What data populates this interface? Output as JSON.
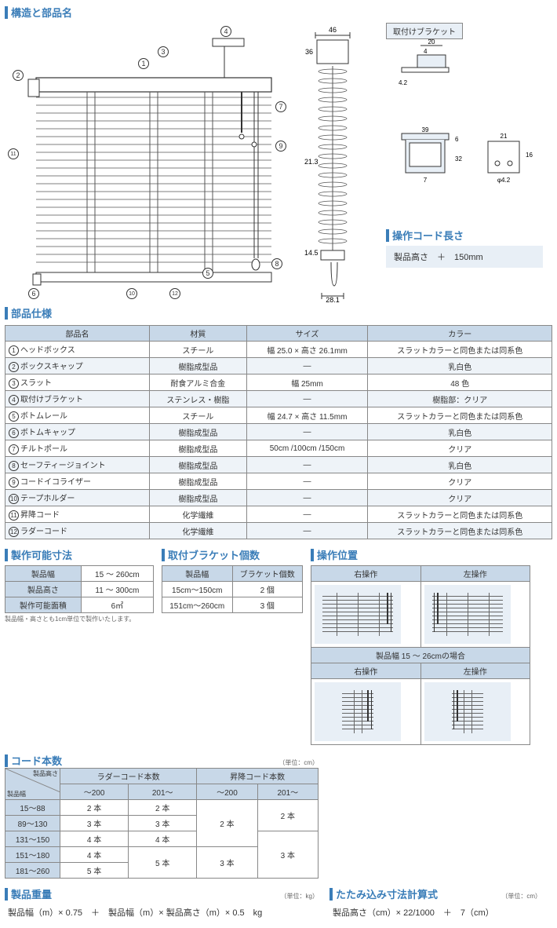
{
  "titles": {
    "structure": "構造と部品名",
    "parts_spec": "部品仕様",
    "cord_length": "操作コード長さ",
    "make_size": "製作可能寸法",
    "bracket_count": "取付ブラケット個数",
    "op_position": "操作位置",
    "cord_count": "コード本数",
    "weight": "製品重量",
    "fold": "たたみ込み寸法計算式",
    "bracket_label": "取付けブラケット"
  },
  "cord_length_formula": "製品高さ　＋　150mm",
  "parts_table": {
    "headers": [
      "部品名",
      "材質",
      "サイズ",
      "カラー"
    ],
    "rows": [
      {
        "n": "1",
        "name": "ヘッドボックス",
        "mat": "スチール",
        "size": "幅 25.0 × 高さ 26.1mm",
        "color": "スラットカラーと同色または同系色"
      },
      {
        "n": "2",
        "name": "ボックスキャップ",
        "mat": "樹脂成型品",
        "size": "—",
        "color": "乳白色"
      },
      {
        "n": "3",
        "name": "スラット",
        "mat": "耐食アルミ合金",
        "size": "幅 25mm",
        "color": "48 色"
      },
      {
        "n": "4",
        "name": "取付けブラケット",
        "mat": "ステンレス・樹脂",
        "size": "—",
        "color": "樹脂部：クリア"
      },
      {
        "n": "5",
        "name": "ボトムレール",
        "mat": "スチール",
        "size": "幅 24.7 × 高さ 11.5mm",
        "color": "スラットカラーと同色または同系色"
      },
      {
        "n": "6",
        "name": "ボトムキャップ",
        "mat": "樹脂成型品",
        "size": "—",
        "color": "乳白色"
      },
      {
        "n": "7",
        "name": "チルトポール",
        "mat": "樹脂成型品",
        "size": "50cm /100cm /150cm",
        "color": "クリア"
      },
      {
        "n": "8",
        "name": "セーフティージョイント",
        "mat": "樹脂成型品",
        "size": "—",
        "color": "乳白色"
      },
      {
        "n": "9",
        "name": "コードイコライザー",
        "mat": "樹脂成型品",
        "size": "—",
        "color": "クリア"
      },
      {
        "n": "10",
        "name": "テープホルダー",
        "mat": "樹脂成型品",
        "size": "—",
        "color": "クリア"
      },
      {
        "n": "11",
        "name": "昇降コード",
        "mat": "化学繊維",
        "size": "—",
        "color": "スラットカラーと同色または同系色"
      },
      {
        "n": "12",
        "name": "ラダーコード",
        "mat": "化学繊維",
        "size": "—",
        "color": "スラットカラーと同色または同系色"
      }
    ]
  },
  "make_size": {
    "rows": [
      {
        "k": "製品幅",
        "v": "15 ～ 260cm"
      },
      {
        "k": "製品高さ",
        "v": "11 ～ 300cm"
      },
      {
        "k": "製作可能面積",
        "v": "6㎡"
      }
    ],
    "note": "製品幅・高さとも1cm単位で製作いたします。"
  },
  "bracket_count": {
    "headers": [
      "製品幅",
      "ブラケット個数"
    ],
    "rows": [
      {
        "w": "15cm～150cm",
        "c": "2 個"
      },
      {
        "w": "151cm～260cm",
        "c": "3 個"
      }
    ]
  },
  "op_position": {
    "headers": [
      "右操作",
      "左操作"
    ],
    "sub_label": "製品幅 15 ～ 26cmの場合"
  },
  "cord_count": {
    "unit": "（単位：cm）",
    "col_h1": "製品高さ",
    "col_h2": "製品幅",
    "groups": [
      "ラダーコード本数",
      "昇降コード本数"
    ],
    "subs": [
      "～200",
      "201～",
      "～200",
      "201～"
    ],
    "rows": [
      {
        "w": "15～88",
        "l1": "2 本",
        "l2": "2 本",
        "s1": "2 本",
        "s2": "2 本",
        "span_s1": 2,
        "span_s2": 2
      },
      {
        "w": "89～130",
        "l1": "3 本",
        "l2": "3 本"
      },
      {
        "w": "131～150",
        "l1": "4 本",
        "l2": "4 本",
        "s1": "3 本",
        "s2": "3 本",
        "span_s1": 0,
        "span_s2": 0
      },
      {
        "w": "151～180",
        "l1": "4 本",
        "l2": "5 本",
        "l2_span": 2
      },
      {
        "w": "181～260",
        "l1": "5 本"
      }
    ]
  },
  "weight": {
    "unit": "（単位：kg）",
    "formula": "製品幅（m）× 0.75　＋　製品幅（m）× 製品高さ（m）× 0.5　kg"
  },
  "fold": {
    "unit": "（単位：cm）",
    "formula": "製品高さ（cm）× 22/1000　＋　7（cm）"
  },
  "dims": {
    "side_w": "46",
    "side_h1": "36",
    "side_h2": "21.3",
    "side_h3": "14.5",
    "side_bw": "28.1",
    "br_w1": "20",
    "br_w2": "4",
    "br_h": "4.2",
    "br_w3": "39",
    "br_h2": "6",
    "br_h3": "32",
    "br_h4": "7",
    "br_w4": "21",
    "br_h5": "16",
    "br_d": "φ4.2"
  },
  "colors": {
    "accent": "#3a7db8",
    "th_bg": "#c8d8e8",
    "alt_bg": "#eef3f8",
    "light": "#e8eff6"
  }
}
